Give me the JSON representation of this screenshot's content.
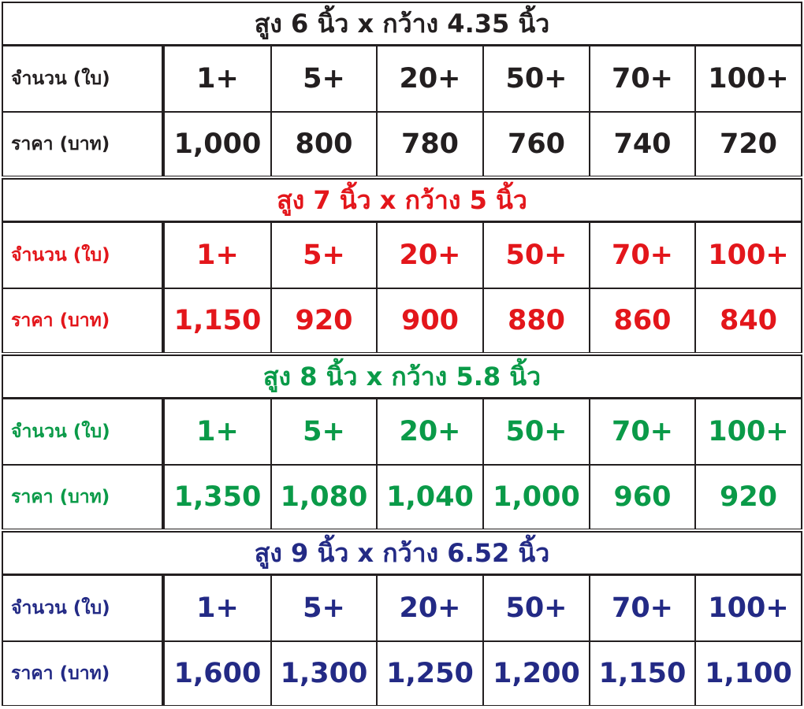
{
  "sections": [
    {
      "title": "สูง 6 นิ้ว x กว้าง 4.35 นิ้ว",
      "color": "#231f20",
      "quantity_label": "จำนวน (ใบ)",
      "quantities": [
        "1+",
        "5+",
        "20+",
        "50+",
        "70+",
        "100+"
      ],
      "price_label": "ราคา (บาท)",
      "prices": [
        "1,000",
        "800",
        "780",
        "760",
        "740",
        "720"
      ]
    },
    {
      "title": "สูง 7 นิ้ว x กว้าง 5 นิ้ว",
      "color": "#e3161b",
      "quantity_label": "จำนวน (ใบ)",
      "quantities": [
        "1+",
        "5+",
        "20+",
        "50+",
        "70+",
        "100+"
      ],
      "price_label": "ราคา (บาท)",
      "prices": [
        "1,150",
        "920",
        "900",
        "880",
        "860",
        "840"
      ]
    },
    {
      "title": "สูง 8 นิ้ว x กว้าง 5.8 นิ้ว",
      "color": "#0a9a48",
      "quantity_label": "จำนวน (ใบ)",
      "quantities": [
        "1+",
        "5+",
        "20+",
        "50+",
        "70+",
        "100+"
      ],
      "price_label": "ราคา (บาท)",
      "prices": [
        "1,350",
        "1,080",
        "1,040",
        "1,000",
        "960",
        "920"
      ]
    },
    {
      "title": "สูง 9 นิ้ว x กว้าง 6.52 นิ้ว",
      "color": "#232a85",
      "quantity_label": "จำนวน (ใบ)",
      "quantities": [
        "1+",
        "5+",
        "20+",
        "50+",
        "70+",
        "100+"
      ],
      "price_label": "ราคา (บาท)",
      "prices": [
        "1,600",
        "1,300",
        "1,250",
        "1,200",
        "1,150",
        "1,100"
      ]
    }
  ]
}
